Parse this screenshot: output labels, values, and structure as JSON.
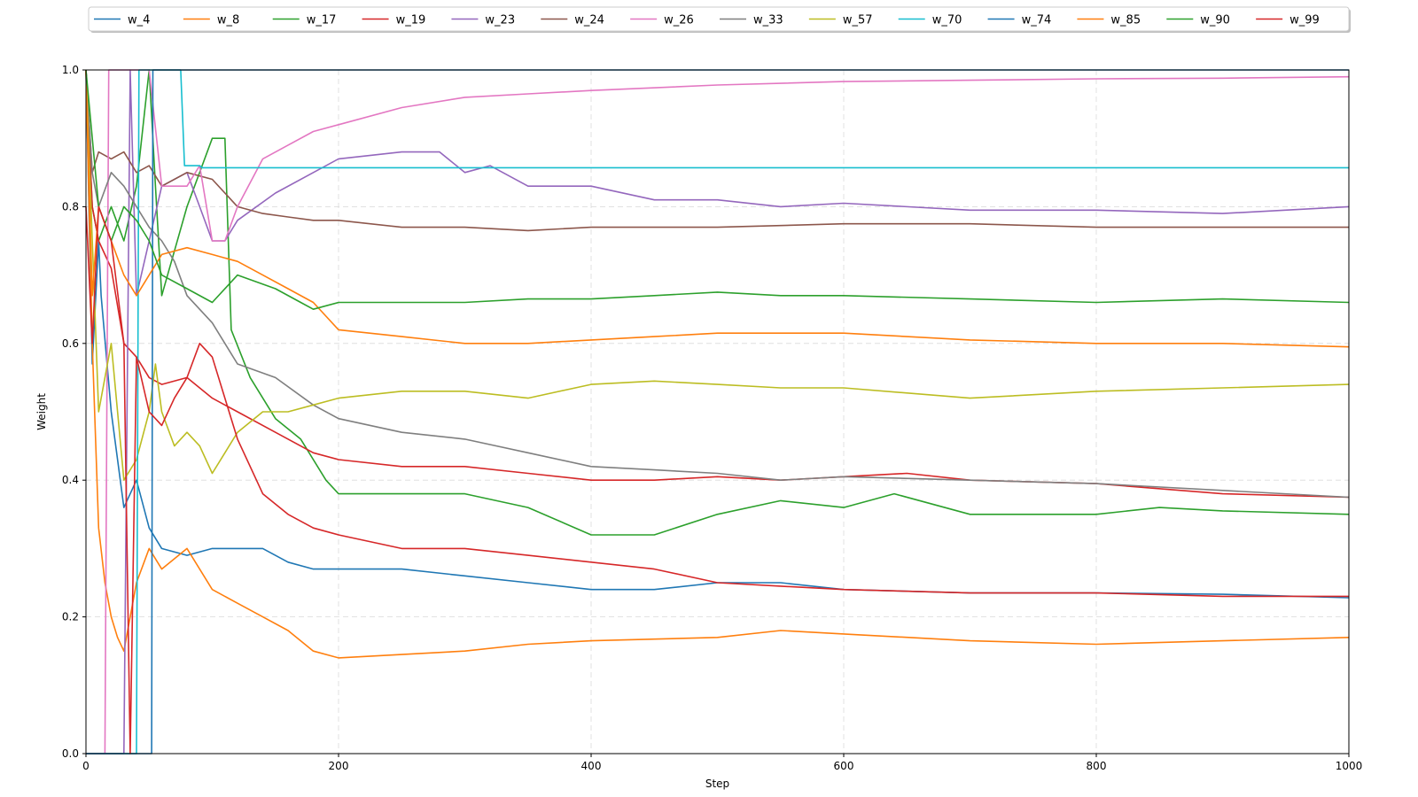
{
  "chart_data": {
    "type": "line",
    "title": "",
    "xlabel": "Step",
    "ylabel": "Weight",
    "xlim": [
      0,
      1000
    ],
    "ylim": [
      0.0,
      1.0
    ],
    "x_ticks": [
      0,
      200,
      400,
      600,
      800,
      1000
    ],
    "x_tick_labels": [
      "0",
      "200",
      "400",
      "600",
      "800",
      "1000"
    ],
    "y_ticks": [
      0.0,
      0.2,
      0.4,
      0.6,
      0.8,
      1.0
    ],
    "y_tick_labels": [
      "0.0",
      "0.2",
      "0.4",
      "0.6",
      "0.8",
      "1.0"
    ],
    "grid": true,
    "legend_position": "top",
    "series": [
      {
        "name": "w_4",
        "color": "#1f77b4",
        "x": [
          0,
          5,
          10,
          12,
          20,
          30,
          40,
          50,
          60,
          80,
          100,
          120,
          140,
          160,
          180,
          200,
          250,
          300,
          350,
          400,
          450,
          500,
          550,
          600,
          700,
          800,
          900,
          1000
        ],
        "y": [
          1.0,
          0.57,
          0.75,
          0.67,
          0.5,
          0.36,
          0.4,
          0.33,
          0.3,
          0.29,
          0.3,
          0.3,
          0.3,
          0.28,
          0.27,
          0.27,
          0.27,
          0.26,
          0.25,
          0.24,
          0.24,
          0.25,
          0.25,
          0.24,
          0.235,
          0.235,
          0.233,
          0.228
        ]
      },
      {
        "name": "w_8",
        "color": "#ff7f0e",
        "x": [
          0,
          5,
          10,
          15,
          20,
          25,
          30,
          40,
          50,
          60,
          80,
          100,
          120,
          140,
          160,
          180,
          200,
          250,
          300,
          350,
          400,
          500,
          550,
          600,
          700,
          800,
          900,
          1000
        ],
        "y": [
          1.0,
          0.6,
          0.33,
          0.25,
          0.2,
          0.17,
          0.15,
          0.25,
          0.3,
          0.27,
          0.3,
          0.24,
          0.22,
          0.2,
          0.18,
          0.15,
          0.14,
          0.145,
          0.15,
          0.16,
          0.165,
          0.17,
          0.18,
          0.175,
          0.165,
          0.16,
          0.165,
          0.17
        ]
      },
      {
        "name": "w_17",
        "color": "#2ca02c",
        "x": [
          0,
          5,
          10,
          20,
          30,
          40,
          50,
          55,
          60,
          80,
          100,
          110,
          115,
          130,
          150,
          170,
          190,
          200,
          250,
          300,
          350,
          400,
          450,
          500,
          550,
          600,
          640,
          700,
          800,
          850,
          900,
          1000
        ],
        "y": [
          1.0,
          0.8,
          0.75,
          0.8,
          0.75,
          0.83,
          1.0,
          0.83,
          0.67,
          0.8,
          0.9,
          0.9,
          0.62,
          0.55,
          0.49,
          0.46,
          0.4,
          0.38,
          0.38,
          0.38,
          0.36,
          0.32,
          0.32,
          0.35,
          0.37,
          0.36,
          0.38,
          0.35,
          0.35,
          0.36,
          0.355,
          0.35
        ]
      },
      {
        "name": "w_19",
        "color": "#d62728",
        "x": [
          0,
          5,
          10,
          20,
          30,
          40,
          50,
          60,
          80,
          100,
          120,
          150,
          180,
          200,
          250,
          300,
          350,
          400,
          450,
          500,
          550,
          600,
          650,
          700,
          800,
          900,
          1000
        ],
        "y": [
          1.0,
          0.8,
          0.75,
          0.71,
          0.6,
          0.58,
          0.55,
          0.54,
          0.55,
          0.52,
          0.5,
          0.47,
          0.44,
          0.43,
          0.42,
          0.42,
          0.41,
          0.4,
          0.4,
          0.405,
          0.4,
          0.405,
          0.41,
          0.4,
          0.395,
          0.38,
          0.375
        ]
      },
      {
        "name": "w_23",
        "color": "#9467bd",
        "x": [
          0,
          30,
          35,
          40,
          50,
          60,
          80,
          90,
          100,
          110,
          120,
          150,
          200,
          250,
          280,
          300,
          320,
          350,
          400,
          450,
          500,
          550,
          600,
          700,
          800,
          900,
          1000
        ],
        "y": [
          0.0,
          0.0,
          1.0,
          0.67,
          0.75,
          0.83,
          0.85,
          0.8,
          0.75,
          0.75,
          0.78,
          0.82,
          0.87,
          0.88,
          0.88,
          0.85,
          0.86,
          0.83,
          0.83,
          0.81,
          0.81,
          0.8,
          0.805,
          0.795,
          0.795,
          0.79,
          0.8
        ]
      },
      {
        "name": "w_24",
        "color": "#8c564b",
        "x": [
          0,
          5,
          10,
          20,
          30,
          40,
          50,
          60,
          80,
          100,
          120,
          140,
          160,
          180,
          200,
          250,
          300,
          350,
          400,
          500,
          600,
          700,
          800,
          900,
          1000
        ],
        "y": [
          1.0,
          0.85,
          0.88,
          0.87,
          0.88,
          0.85,
          0.86,
          0.83,
          0.85,
          0.84,
          0.8,
          0.79,
          0.785,
          0.78,
          0.78,
          0.77,
          0.77,
          0.765,
          0.77,
          0.77,
          0.775,
          0.775,
          0.77,
          0.77,
          0.77
        ]
      },
      {
        "name": "w_26",
        "color": "#e377c2",
        "x": [
          0,
          15,
          18,
          20,
          30,
          40,
          50,
          60,
          80,
          90,
          100,
          110,
          120,
          140,
          160,
          180,
          200,
          250,
          300,
          350,
          400,
          500,
          600,
          700,
          800,
          900,
          1000
        ],
        "y": [
          0.0,
          0.0,
          1.0,
          1.0,
          1.0,
          1.0,
          1.0,
          0.83,
          0.83,
          0.86,
          0.75,
          0.75,
          0.8,
          0.87,
          0.89,
          0.91,
          0.92,
          0.945,
          0.96,
          0.965,
          0.97,
          0.978,
          0.983,
          0.985,
          0.987,
          0.988,
          0.99
        ]
      },
      {
        "name": "w_33",
        "color": "#7f7f7f",
        "x": [
          0,
          5,
          10,
          20,
          30,
          40,
          50,
          60,
          70,
          80,
          100,
          120,
          150,
          180,
          200,
          250,
          300,
          350,
          400,
          450,
          500,
          550,
          600,
          700,
          800,
          900,
          1000
        ],
        "y": [
          1.0,
          0.85,
          0.8,
          0.85,
          0.83,
          0.8,
          0.77,
          0.75,
          0.72,
          0.67,
          0.63,
          0.57,
          0.55,
          0.51,
          0.49,
          0.47,
          0.46,
          0.44,
          0.42,
          0.415,
          0.41,
          0.4,
          0.405,
          0.4,
          0.395,
          0.385,
          0.375
        ]
      },
      {
        "name": "w_57",
        "color": "#bcbd22",
        "x": [
          0,
          10,
          20,
          30,
          40,
          50,
          55,
          60,
          70,
          80,
          90,
          100,
          110,
          120,
          140,
          160,
          180,
          200,
          250,
          300,
          350,
          400,
          450,
          500,
          550,
          600,
          700,
          800,
          900,
          1000
        ],
        "y": [
          1.0,
          0.5,
          0.6,
          0.4,
          0.43,
          0.5,
          0.57,
          0.5,
          0.45,
          0.47,
          0.45,
          0.41,
          0.44,
          0.47,
          0.5,
          0.5,
          0.51,
          0.52,
          0.53,
          0.53,
          0.52,
          0.54,
          0.545,
          0.54,
          0.535,
          0.535,
          0.52,
          0.53,
          0.535,
          0.54
        ]
      },
      {
        "name": "w_70",
        "color": "#17becf",
        "x": [
          0,
          40,
          42,
          75,
          78,
          90,
          92,
          1000
        ],
        "y": [
          0.0,
          0.0,
          1.0,
          1.0,
          0.86,
          0.86,
          0.857,
          0.857
        ]
      },
      {
        "name": "w_74",
        "color": "#1f77b4",
        "x": [
          0,
          52,
          53,
          1000
        ],
        "y": [
          0.0,
          0.0,
          1.0,
          1.0
        ]
      },
      {
        "name": "w_85",
        "color": "#ff7f0e",
        "x": [
          0,
          5,
          10,
          20,
          30,
          40,
          50,
          60,
          80,
          100,
          120,
          140,
          160,
          180,
          200,
          250,
          300,
          350,
          400,
          450,
          500,
          550,
          600,
          700,
          800,
          900,
          1000
        ],
        "y": [
          1.0,
          0.67,
          0.8,
          0.75,
          0.7,
          0.67,
          0.7,
          0.73,
          0.74,
          0.73,
          0.72,
          0.7,
          0.68,
          0.66,
          0.62,
          0.61,
          0.6,
          0.6,
          0.605,
          0.61,
          0.615,
          0.615,
          0.615,
          0.605,
          0.6,
          0.6,
          0.595
        ]
      },
      {
        "name": "w_90",
        "color": "#2ca02c",
        "x": [
          0,
          10,
          20,
          30,
          40,
          50,
          60,
          80,
          100,
          120,
          150,
          170,
          180,
          200,
          250,
          300,
          350,
          400,
          450,
          500,
          550,
          600,
          700,
          800,
          900,
          1000
        ],
        "y": [
          1.0,
          0.8,
          0.75,
          0.8,
          0.78,
          0.75,
          0.7,
          0.68,
          0.66,
          0.7,
          0.68,
          0.66,
          0.65,
          0.66,
          0.66,
          0.66,
          0.665,
          0.665,
          0.67,
          0.675,
          0.67,
          0.67,
          0.665,
          0.66,
          0.665,
          0.66
        ]
      },
      {
        "name": "w_99",
        "color": "#d62728",
        "x": [
          0,
          5,
          10,
          20,
          30,
          35,
          40,
          50,
          60,
          70,
          80,
          90,
          100,
          120,
          140,
          160,
          180,
          200,
          250,
          300,
          350,
          400,
          450,
          500,
          550,
          600,
          700,
          800,
          900,
          1000
        ],
        "y": [
          0.8,
          0.6,
          0.8,
          0.75,
          0.6,
          0.0,
          0.58,
          0.5,
          0.48,
          0.52,
          0.55,
          0.6,
          0.58,
          0.46,
          0.38,
          0.35,
          0.33,
          0.32,
          0.3,
          0.3,
          0.29,
          0.28,
          0.27,
          0.25,
          0.245,
          0.24,
          0.235,
          0.235,
          0.23,
          0.23
        ]
      }
    ]
  }
}
